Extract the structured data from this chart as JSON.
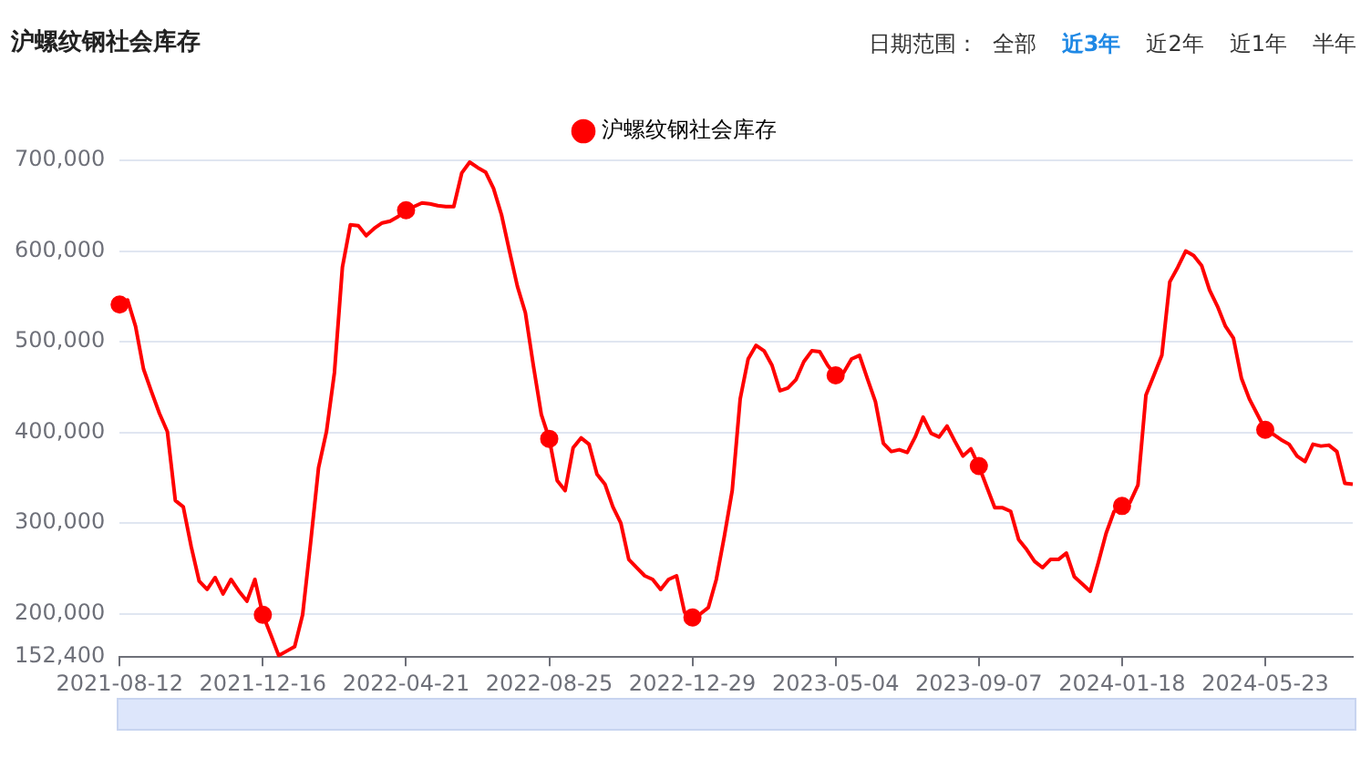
{
  "chart_data": {
    "type": "line",
    "title": "沪螺纹钢社会库存",
    "annotations": [
      "日期范围：",
      "全部",
      "近3年",
      "近2年",
      "近1年",
      "半年"
    ],
    "categories": [
      "2021-08-12",
      null,
      null,
      null,
      null,
      null,
      null,
      null,
      null,
      null,
      null,
      null,
      null,
      null,
      null,
      null,
      null,
      null,
      "2021-12-16",
      null,
      null,
      null,
      null,
      null,
      null,
      null,
      null,
      null,
      null,
      null,
      null,
      null,
      null,
      null,
      null,
      null,
      "2022-04-21",
      null,
      null,
      null,
      null,
      null,
      null,
      null,
      null,
      null,
      null,
      null,
      null,
      null,
      null,
      null,
      null,
      null,
      "2022-08-25",
      null,
      null,
      null,
      null,
      null,
      null,
      null,
      null,
      null,
      null,
      null,
      null,
      null,
      null,
      null,
      null,
      null,
      "2022-12-29",
      null,
      null,
      null,
      null,
      null,
      null,
      null,
      null,
      null,
      null,
      null,
      null,
      null,
      null,
      null,
      null,
      null,
      "2023-05-04",
      null,
      null,
      null,
      null,
      null,
      null,
      null,
      null,
      null,
      null,
      null,
      null,
      null,
      null,
      null,
      null,
      null,
      "2023-09-07",
      null,
      null,
      null,
      null,
      null,
      null,
      null,
      null,
      null,
      null,
      null,
      null,
      null,
      null,
      null,
      null,
      null,
      "2024-01-18",
      null,
      null,
      null,
      null,
      null,
      null,
      null,
      null,
      null,
      null,
      null,
      null,
      null,
      null,
      null,
      null,
      null,
      "2024-05-23",
      null,
      null,
      null,
      null,
      null,
      null,
      null,
      null,
      null,
      null,
      null
    ],
    "series": [
      {
        "name": "沪螺纹钢社会库存",
        "color": "#ff0000",
        "values": [
          541000,
          546000,
          517000,
          470000,
          445000,
          421000,
          401000,
          325000,
          318000,
          274000,
          236000,
          227000,
          240000,
          222000,
          238000,
          225000,
          214000,
          238000,
          199000,
          177000,
          154000,
          159000,
          164000,
          199000,
          278000,
          361000,
          401000,
          466000,
          582000,
          629000,
          628000,
          617000,
          625000,
          631000,
          633000,
          638000,
          645000,
          649000,
          653000,
          652000,
          650000,
          649000,
          649000,
          686000,
          698000,
          692000,
          687000,
          669000,
          640000,
          600000,
          561000,
          532000,
          474000,
          420000,
          393000,
          347000,
          336000,
          383000,
          394000,
          387000,
          354000,
          343000,
          318000,
          300000,
          260000,
          251000,
          242000,
          238000,
          227000,
          238000,
          242000,
          202000,
          196000,
          200000,
          207000,
          238000,
          285000,
          336000,
          437000,
          481000,
          496000,
          490000,
          474000,
          446000,
          449000,
          458000,
          478000,
          490000,
          489000,
          474000,
          463000,
          466000,
          481000,
          485000,
          459000,
          434000,
          388000,
          379000,
          381000,
          378000,
          395000,
          417000,
          399000,
          395000,
          407000,
          390000,
          374000,
          382000,
          363000,
          340000,
          317000,
          317000,
          313000,
          282000,
          271000,
          258000,
          251000,
          260000,
          260000,
          267000,
          241000,
          233000,
          225000,
          256000,
          289000,
          313000,
          319000,
          323000,
          342000,
          441000,
          463000,
          485000,
          566000,
          582000,
          600000,
          595000,
          584000,
          557000,
          539000,
          517000,
          504000,
          460000,
          437000,
          420000,
          403000,
          398000,
          392000,
          387000,
          374000,
          368000,
          387000,
          385000,
          386000,
          379000,
          344000,
          343000
        ]
      },
      {
        "type": "scatter",
        "color": "#ff0000",
        "marker": "circle",
        "values": [
          541000,
          null,
          null,
          null,
          null,
          null,
          null,
          null,
          null,
          null,
          null,
          null,
          null,
          null,
          null,
          null,
          null,
          null,
          199000,
          null,
          null,
          null,
          null,
          null,
          null,
          null,
          null,
          null,
          null,
          null,
          null,
          null,
          null,
          null,
          null,
          null,
          645000,
          null,
          null,
          null,
          null,
          null,
          null,
          null,
          null,
          null,
          null,
          null,
          null,
          null,
          null,
          null,
          null,
          null,
          393000,
          null,
          null,
          null,
          null,
          null,
          null,
          null,
          null,
          null,
          null,
          null,
          null,
          null,
          null,
          null,
          null,
          null,
          196000,
          null,
          null,
          null,
          null,
          null,
          null,
          null,
          null,
          null,
          null,
          null,
          null,
          null,
          null,
          null,
          null,
          null,
          463000,
          null,
          null,
          null,
          null,
          null,
          null,
          null,
          null,
          null,
          null,
          null,
          null,
          null,
          null,
          null,
          null,
          null,
          363000,
          null,
          null,
          null,
          null,
          null,
          null,
          null,
          null,
          null,
          null,
          null,
          null,
          null,
          null,
          null,
          null,
          null,
          319000,
          null,
          null,
          null,
          null,
          null,
          null,
          null,
          null,
          null,
          null,
          null,
          null,
          null,
          null,
          null,
          null,
          null,
          403000,
          null,
          null,
          null,
          null,
          null,
          null,
          null,
          null,
          null,
          null,
          null
        ]
      }
    ],
    "ylim": [
      152400,
      700000
    ],
    "yticks": [
      {
        "value": 152400,
        "label": "152,400"
      },
      {
        "value": 200000,
        "label": "200,000"
      },
      {
        "value": 300000,
        "label": "300,000"
      },
      {
        "value": 400000,
        "label": "400,000"
      },
      {
        "value": 500000,
        "label": "500,000"
      },
      {
        "value": 600000,
        "label": "600,000"
      },
      {
        "value": 700000,
        "label": "700,000"
      }
    ],
    "grid": "y",
    "legend": "top",
    "marker": "none",
    "line_style": "solid"
  }
}
